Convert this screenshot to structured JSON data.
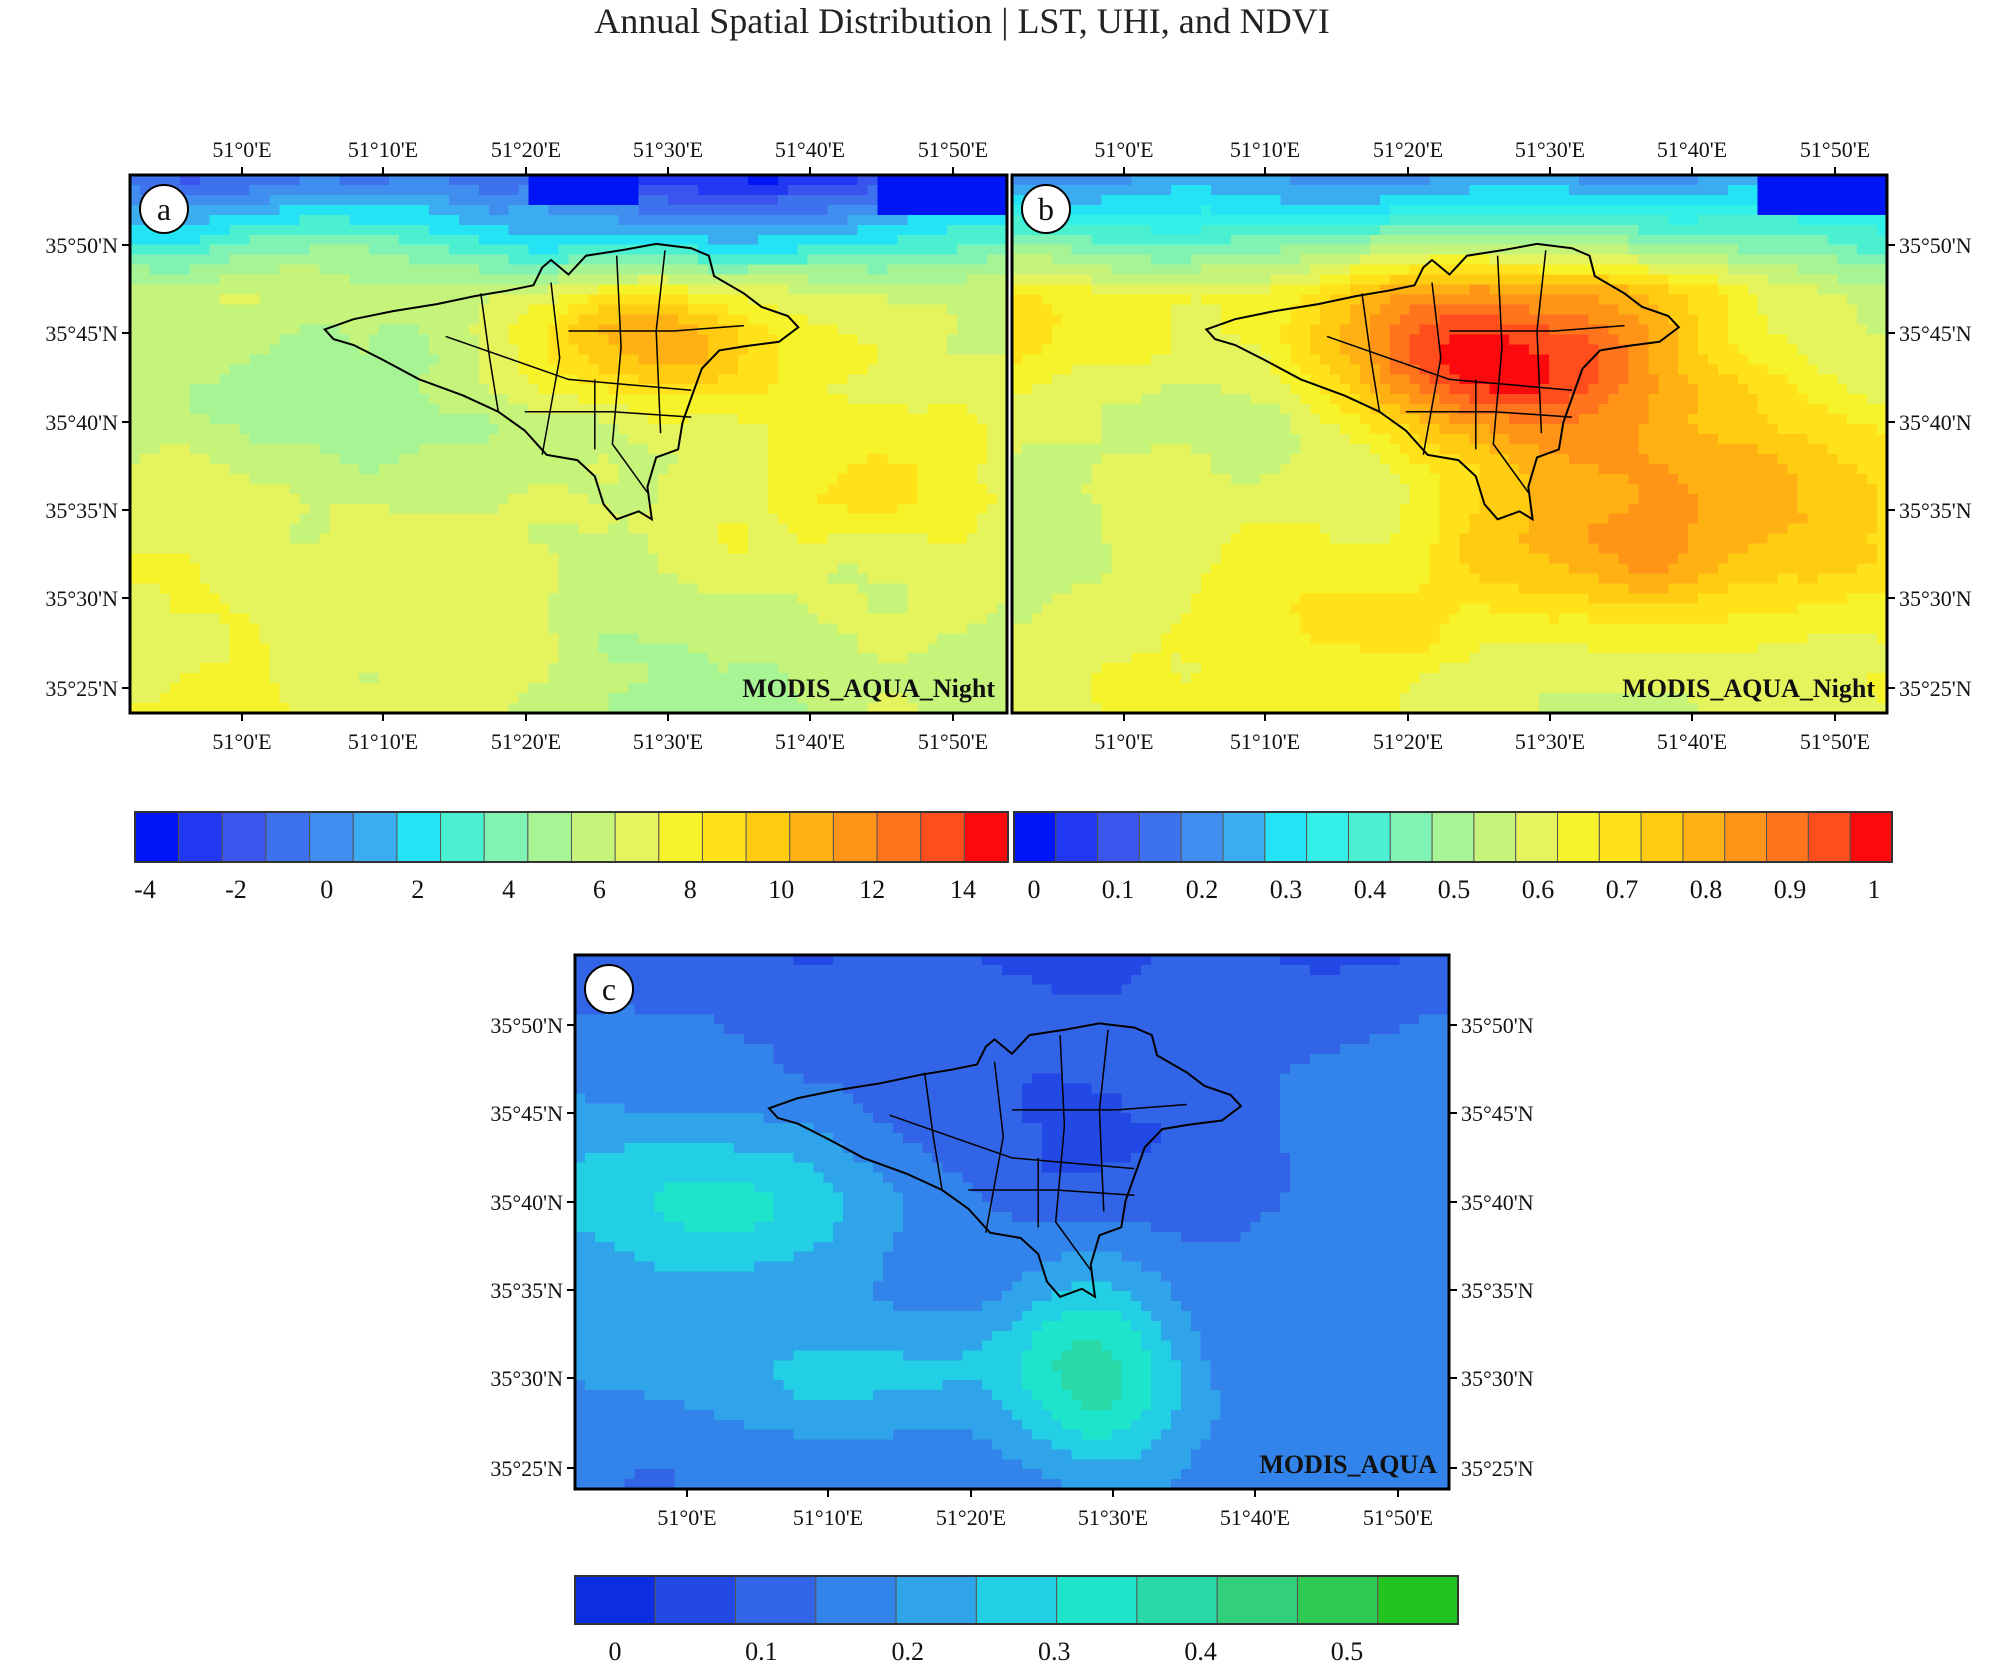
{
  "title": "Annual Spatial Distribution | LST, UHI, and NDVI",
  "lon_labels": [
    "51°0'E",
    "51°10'E",
    "51°20'E",
    "51°30'E",
    "51°40'E",
    "51°50'E"
  ],
  "lat_labels": [
    "35°50'N",
    "35°45'N",
    "35°40'N",
    "35°35'N",
    "35°30'N",
    "35°25'N"
  ],
  "panels": [
    {
      "id": "a",
      "label": "a",
      "source": "MODIS_AQUA_Night",
      "variable": "LST",
      "mean_field": "lst",
      "vmin": -5,
      "vmax": 15
    },
    {
      "id": "b",
      "label": "b",
      "source": "MODIS_AQUA_Night",
      "variable": "UHI",
      "mean_field": "uhi",
      "vmin": 0,
      "vmax": 1
    },
    {
      "id": "c",
      "label": "c",
      "source": "MODIS_AQUA",
      "variable": "NDVI",
      "mean_field": "ndvi",
      "vmin": -0.05,
      "vmax": 0.6
    }
  ],
  "colorbars": [
    {
      "id": "lst",
      "ticks": [
        "-4",
        "-2",
        "0",
        "2",
        "4",
        "6",
        "8",
        "10",
        "12",
        "14"
      ],
      "colors": [
        "#0015f5",
        "#2137f2",
        "#3a55ee",
        "#3d71ee",
        "#3f8ef0",
        "#3cacf0",
        "#24e3f4",
        "#4bf0d0",
        "#80f3b4",
        "#a6f494",
        "#c6f47a",
        "#e5f45c",
        "#f7f32a",
        "#ffe21a",
        "#ffcc12",
        "#ffb012",
        "#ff9416",
        "#ff741c",
        "#ff4e1c",
        "#fa0a0c"
      ]
    },
    {
      "id": "uhi",
      "ticks": [
        "0",
        "0.1",
        "0.2",
        "0.3",
        "0.4",
        "0.5",
        "0.6",
        "0.7",
        "0.8",
        "0.9",
        "1"
      ],
      "colors": [
        "#0015f5",
        "#2137f2",
        "#3a55ee",
        "#3d71ee",
        "#3f8ef0",
        "#3cacf0",
        "#24e3f4",
        "#32f0e8",
        "#4bf0d0",
        "#80f3b4",
        "#a6f494",
        "#c6f47a",
        "#e5f45c",
        "#f7f32a",
        "#ffe21a",
        "#ffcc12",
        "#ffb012",
        "#ff9416",
        "#ff741c",
        "#ff4e1c",
        "#fa0a0c"
      ]
    },
    {
      "id": "ndvi",
      "ticks": [
        "0",
        "0.1",
        "0.2",
        "0.3",
        "0.4",
        "0.5"
      ],
      "colors": [
        "#0a2ee0",
        "#2249e6",
        "#3164e6",
        "#3384ea",
        "#2fa4ea",
        "#22cfe4",
        "#1fe4cc",
        "#2ad8a8",
        "#32d07c",
        "#2fca52",
        "#22c420"
      ]
    }
  ]
}
